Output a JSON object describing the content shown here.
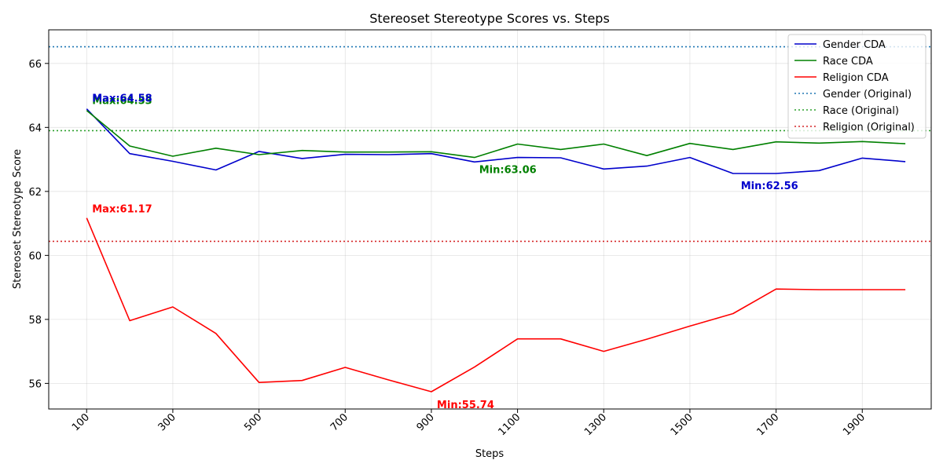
{
  "chart_data": {
    "type": "line",
    "title": "Stereoset Stereotype Scores vs. Steps",
    "xlabel": "Steps",
    "ylabel": "Stereoset Stereotype Score",
    "x": [
      100,
      200,
      300,
      400,
      500,
      600,
      700,
      800,
      900,
      1000,
      1100,
      1200,
      1300,
      1400,
      1500,
      1600,
      1700,
      1800,
      1900,
      2000
    ],
    "xticks": [
      100,
      300,
      500,
      700,
      900,
      1100,
      1300,
      1500,
      1700,
      1900
    ],
    "yticks": [
      56,
      58,
      60,
      62,
      64,
      66
    ],
    "xlim": [
      12,
      2060
    ],
    "ylim": [
      55.2,
      67.05
    ],
    "grid": true,
    "legend_position": "top-right",
    "series": [
      {
        "name": "Gender CDA",
        "color": "#0000cc",
        "values": [
          64.58,
          63.18,
          62.94,
          62.67,
          63.25,
          63.03,
          63.16,
          63.15,
          63.18,
          62.92,
          63.06,
          63.05,
          62.7,
          62.79,
          63.06,
          62.56,
          62.56,
          62.65,
          63.04,
          62.93
        ]
      },
      {
        "name": "Race CDA",
        "color": "#008000",
        "values": [
          64.53,
          63.42,
          63.1,
          63.35,
          63.15,
          63.28,
          63.23,
          63.23,
          63.24,
          63.06,
          63.48,
          63.31,
          63.48,
          63.12,
          63.5,
          63.31,
          63.55,
          63.51,
          63.56,
          63.49
        ]
      },
      {
        "name": "Religion CDA",
        "color": "#ff0000",
        "values": [
          61.17,
          57.96,
          58.39,
          57.56,
          56.03,
          56.09,
          56.5,
          56.11,
          55.74,
          56.51,
          57.39,
          57.39,
          57.0,
          57.38,
          57.79,
          58.18,
          58.95,
          58.93,
          58.93,
          58.93
        ]
      }
    ],
    "reference_lines": [
      {
        "name": "Gender (Original)",
        "color": "#1f77b4",
        "value": 66.52
      },
      {
        "name": "Race (Original)",
        "color": "#2ca02c",
        "value": 63.9
      },
      {
        "name": "Religion (Original)",
        "color": "#d62728",
        "value": 60.44
      }
    ],
    "annotations": [
      {
        "text": "Max:64.53",
        "x": 100,
        "y": 64.53,
        "color": "#008000",
        "dx": 7,
        "dy": -8
      },
      {
        "text": "Max:64.58",
        "x": 100,
        "y": 64.58,
        "color": "#0000cc",
        "dx": 7,
        "dy": -9
      },
      {
        "text": "Min:63.06",
        "x": 1000,
        "y": 63.06,
        "color": "#008000",
        "dx": 6,
        "dy": 20
      },
      {
        "text": "Max:61.17",
        "x": 100,
        "y": 61.17,
        "color": "#ff0000",
        "dx": 7,
        "dy": -7
      },
      {
        "text": "Min:62.56",
        "x": 1600,
        "y": 62.56,
        "color": "#0000cc",
        "dx": 10,
        "dy": 20
      },
      {
        "text": "Min:55.74",
        "x": 900,
        "y": 55.74,
        "color": "#ff0000",
        "dx": 7,
        "dy": 21
      }
    ]
  }
}
